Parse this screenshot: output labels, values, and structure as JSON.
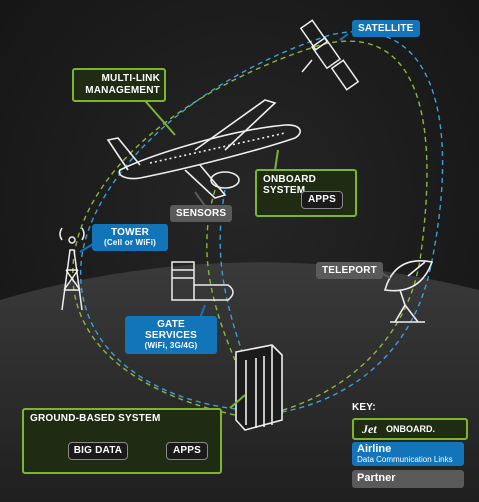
{
  "labels": {
    "satellite": "SATELLITE",
    "multilink_line1": "MULTI-LINK",
    "multilink_line2": "MANAGEMENT",
    "onboard_system": "ONBOARD SYSTEM",
    "onboard_apps": "APPS",
    "sensors": "SENSORS",
    "tower": "TOWER",
    "tower_sub": "(Cell or WiFi)",
    "teleport": "TELEPORT",
    "gate_services": "GATE SERVICES",
    "gate_sub": "(WiFi, 3G/4G)",
    "ground_system": "GROUND-BASED SYSTEM",
    "big_data": "BIG DATA",
    "ground_apps": "APPS"
  },
  "key": {
    "title": "KEY:",
    "brand_mark": "Jet",
    "brand_word": "ONBOARD.",
    "airline_title": "Airline",
    "airline_sub": "Data Communication Links",
    "partner": "Partner"
  },
  "colors": {
    "background": "#1b1b1b",
    "ground": "#2b2b2b",
    "green_accent": "#7bb62e",
    "blue_accent": "#1274b9",
    "partner_gray": "#5a5a5a",
    "green_link": "#8bb83a",
    "blue_link": "#3aa0d8"
  }
}
